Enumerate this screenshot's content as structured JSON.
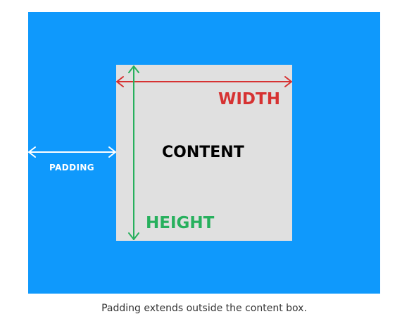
{
  "colors": {
    "padding_area": "#0f99fc",
    "content_box": "#e0e0e0",
    "width_arrow": "#d63232",
    "height_arrow": "#27b05d",
    "padding_arrow": "#ffffff",
    "content_text": "#000000",
    "caption_text": "#333333"
  },
  "labels": {
    "width": "WIDTH",
    "height": "HEIGHT",
    "content": "CONTENT",
    "padding": "PADDING"
  },
  "caption": "Padding extends outside the content box."
}
